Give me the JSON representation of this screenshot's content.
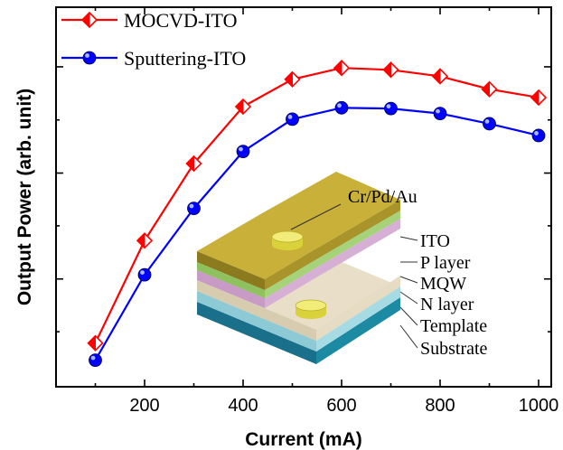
{
  "chart_data": {
    "type": "line",
    "title": "",
    "xlabel": "Current (mA)",
    "ylabel": "Output Power (arb. unit)",
    "x": [
      100,
      200,
      300,
      400,
      500,
      600,
      700,
      800,
      900,
      1000
    ],
    "xlim": [
      0,
      1060
    ],
    "xticks": [
      200,
      400,
      600,
      800,
      1000
    ],
    "ylim": [
      0,
      1.0
    ],
    "y_tick_labels_shown": false,
    "grid": false,
    "legend": "top-left",
    "series": [
      {
        "name": "MOCVD-ITO",
        "color": "#ff0000",
        "marker": "half-filled-diamond",
        "values": [
          0.115,
          0.385,
          0.588,
          0.738,
          0.81,
          0.84,
          0.835,
          0.818,
          0.784,
          0.762
        ]
      },
      {
        "name": "Sputtering-ITO",
        "color": "#0000ff",
        "marker": "filled-circle",
        "values": [
          0.07,
          0.295,
          0.47,
          0.62,
          0.705,
          0.735,
          0.733,
          0.72,
          0.693,
          0.662
        ]
      }
    ]
  },
  "inset": {
    "labels": [
      "Cr/Pd/Au",
      "ITO",
      "P layer",
      "MQW",
      "N layer",
      "Template",
      "Substrate"
    ]
  }
}
